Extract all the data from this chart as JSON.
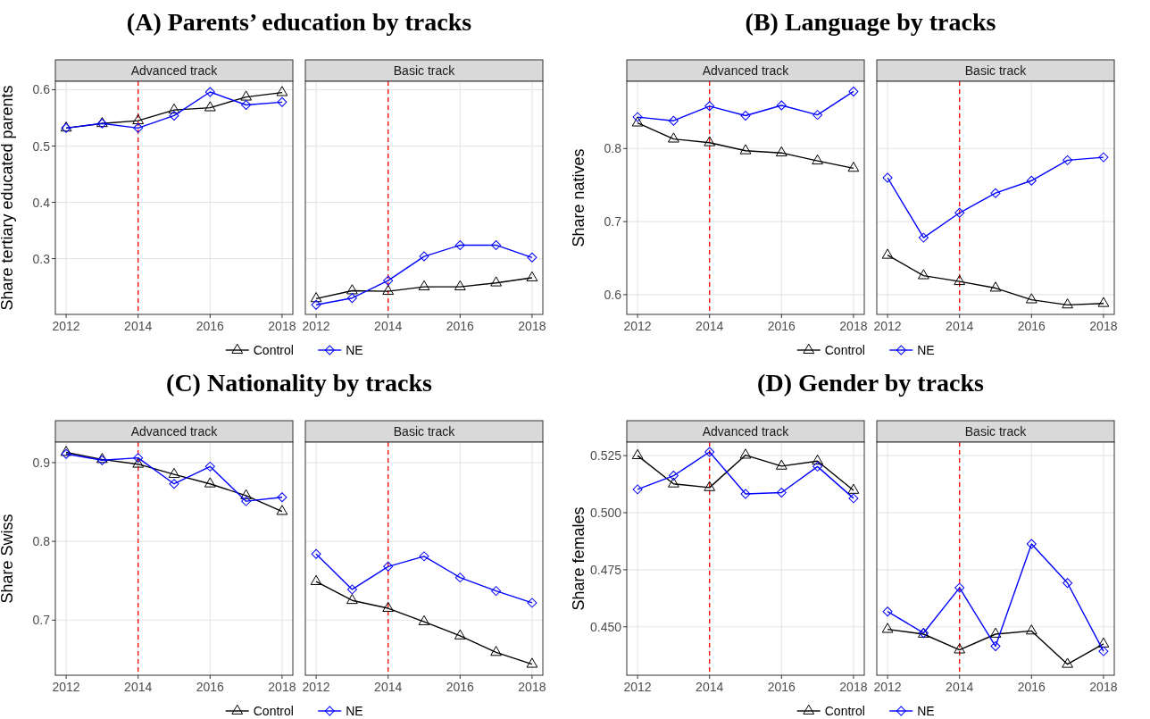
{
  "chart_data": [
    {
      "type": "line",
      "title": "(A) Parents’ education by tracks",
      "subtitle": "Advanced track",
      "ylabel": "Share tertiary educated parents",
      "x": [
        2012,
        2013,
        2014,
        2015,
        2016,
        2017,
        2018
      ],
      "xlim": [
        2011.7,
        2018.3
      ],
      "xticks": [
        2012,
        2014,
        2016,
        2018
      ],
      "ylim": [
        0.201,
        0.615
      ],
      "yticks": [
        0.3,
        0.4,
        0.5,
        0.6
      ],
      "grid": true,
      "legend": "bottom",
      "ref_lines": [
        {
          "axis": "x",
          "value": 2014,
          "color": "#ff0000",
          "line_style": "dashed"
        }
      ],
      "series": [
        {
          "name": "Control",
          "color": "#000000",
          "marker": "triangle",
          "values": [
            0.532,
            0.54,
            0.545,
            0.564,
            0.568,
            0.587,
            0.595
          ]
        },
        {
          "name": "NE",
          "color": "#0000ff",
          "marker": "diamond",
          "values": [
            0.532,
            0.54,
            0.532,
            0.554,
            0.596,
            0.573,
            0.578
          ]
        }
      ]
    },
    {
      "type": "line",
      "subtitle": "Basic track",
      "x": [
        2012,
        2013,
        2014,
        2015,
        2016,
        2017,
        2018
      ],
      "xlim": [
        2011.7,
        2018.3
      ],
      "xticks": [
        2012,
        2014,
        2016,
        2018
      ],
      "ylim": [
        0.201,
        0.615
      ],
      "yticks": [
        0.3,
        0.4,
        0.5,
        0.6
      ],
      "grid": true,
      "tick_labels": "x",
      "ref_lines": [
        {
          "axis": "x",
          "value": 2014,
          "color": "#ff0000",
          "line_style": "dashed"
        }
      ],
      "series": [
        {
          "color": "#000000",
          "marker": "triangle",
          "values": [
            0.229,
            0.243,
            0.242,
            0.25,
            0.25,
            0.257,
            0.266
          ]
        },
        {
          "color": "#0000ff",
          "marker": "diamond",
          "values": [
            0.218,
            0.23,
            0.261,
            0.304,
            0.324,
            0.324,
            0.302
          ]
        }
      ]
    },
    {
      "type": "line",
      "title": "(B) Language by tracks",
      "subtitle": "Advanced track",
      "ylabel": "Share natives",
      "x": [
        2012,
        2013,
        2014,
        2015,
        2016,
        2017,
        2018
      ],
      "xlim": [
        2011.7,
        2018.3
      ],
      "xticks": [
        2012,
        2014,
        2016,
        2018
      ],
      "ylim": [
        0.573,
        0.892
      ],
      "yticks": [
        0.6,
        0.7,
        0.8
      ],
      "grid": true,
      "legend": "bottom",
      "ref_lines": [
        {
          "axis": "x",
          "value": 2014,
          "color": "#ff0000",
          "line_style": "dashed"
        }
      ],
      "series": [
        {
          "name": "Control",
          "color": "#000000",
          "marker": "triangle",
          "values": [
            0.835,
            0.813,
            0.808,
            0.797,
            0.794,
            0.783,
            0.773
          ]
        },
        {
          "name": "NE",
          "color": "#0000ff",
          "marker": "diamond",
          "values": [
            0.843,
            0.838,
            0.858,
            0.845,
            0.859,
            0.846,
            0.878
          ]
        }
      ]
    },
    {
      "type": "line",
      "subtitle": "Basic track",
      "x": [
        2012,
        2013,
        2014,
        2015,
        2016,
        2017,
        2018
      ],
      "xlim": [
        2011.7,
        2018.3
      ],
      "xticks": [
        2012,
        2014,
        2016,
        2018
      ],
      "ylim": [
        0.573,
        0.892
      ],
      "yticks": [
        0.6,
        0.7,
        0.8
      ],
      "grid": true,
      "tick_labels": "x",
      "ref_lines": [
        {
          "axis": "x",
          "value": 2014,
          "color": "#ff0000",
          "line_style": "dashed"
        }
      ],
      "series": [
        {
          "color": "#000000",
          "marker": "triangle",
          "values": [
            0.654,
            0.626,
            0.618,
            0.609,
            0.593,
            0.586,
            0.588
          ]
        },
        {
          "color": "#0000ff",
          "marker": "diamond",
          "values": [
            0.76,
            0.678,
            0.712,
            0.739,
            0.756,
            0.784,
            0.788
          ]
        }
      ]
    },
    {
      "type": "line",
      "title": "(C) Nationality by tracks",
      "subtitle": "Advanced track",
      "ylabel": "Share Swiss",
      "x": [
        2012,
        2013,
        2014,
        2015,
        2016,
        2017,
        2018
      ],
      "xlim": [
        2011.7,
        2018.3
      ],
      "xticks": [
        2012,
        2014,
        2016,
        2018
      ],
      "ylim": [
        0.63,
        0.926
      ],
      "yticks": [
        0.7,
        0.8,
        0.9
      ],
      "grid": true,
      "legend": "bottom",
      "ref_lines": [
        {
          "axis": "x",
          "value": 2014,
          "color": "#ff0000",
          "line_style": "dashed"
        }
      ],
      "series": [
        {
          "name": "Control",
          "color": "#000000",
          "marker": "triangle",
          "values": [
            0.913,
            0.904,
            0.898,
            0.885,
            0.873,
            0.858,
            0.838
          ]
        },
        {
          "name": "NE",
          "color": "#0000ff",
          "marker": "diamond",
          "values": [
            0.911,
            0.903,
            0.906,
            0.873,
            0.895,
            0.851,
            0.856
          ]
        }
      ]
    },
    {
      "type": "line",
      "subtitle": "Basic track",
      "x": [
        2012,
        2013,
        2014,
        2015,
        2016,
        2017,
        2018
      ],
      "xlim": [
        2011.7,
        2018.3
      ],
      "xticks": [
        2012,
        2014,
        2016,
        2018
      ],
      "ylim": [
        0.63,
        0.926
      ],
      "yticks": [
        0.7,
        0.8,
        0.9
      ],
      "grid": true,
      "tick_labels": "x",
      "ref_lines": [
        {
          "axis": "x",
          "value": 2014,
          "color": "#ff0000",
          "line_style": "dashed"
        }
      ],
      "series": [
        {
          "color": "#000000",
          "marker": "triangle",
          "values": [
            0.749,
            0.725,
            0.715,
            0.698,
            0.68,
            0.659,
            0.644
          ]
        },
        {
          "color": "#0000ff",
          "marker": "diamond",
          "values": [
            0.784,
            0.739,
            0.768,
            0.781,
            0.754,
            0.737,
            0.722
          ]
        }
      ]
    },
    {
      "type": "line",
      "title": "(D) Gender by tracks",
      "subtitle": "Advanced track",
      "ylabel": "Share females",
      "x": [
        2012,
        2013,
        2014,
        2015,
        2016,
        2017,
        2018
      ],
      "xlim": [
        2011.7,
        2018.3
      ],
      "xticks": [
        2012,
        2014,
        2016,
        2018
      ],
      "ylim": [
        0.4288,
        0.5309
      ],
      "yticks": [
        {
          "value": 0.45,
          "label": "0.450"
        },
        {
          "value": 0.475,
          "label": "0.475"
        },
        {
          "value": 0.5,
          "label": "0.500"
        },
        {
          "value": 0.525,
          "label": "0.525"
        }
      ],
      "grid": true,
      "legend": "bottom",
      "ref_lines": [
        {
          "axis": "x",
          "value": 2014,
          "color": "#ff0000",
          "line_style": "dashed"
        }
      ],
      "series": [
        {
          "name": "Control",
          "color": "#000000",
          "marker": "triangle",
          "values": [
            0.525,
            0.5126,
            0.511,
            0.5252,
            0.5204,
            0.5226,
            0.5098
          ]
        },
        {
          "name": "NE",
          "color": "#0000ff",
          "marker": "diamond",
          "values": [
            0.5102,
            0.5162,
            0.5266,
            0.5082,
            0.5088,
            0.5202,
            0.5063
          ]
        }
      ]
    },
    {
      "type": "line",
      "subtitle": "Basic track",
      "x": [
        2012,
        2013,
        2014,
        2015,
        2016,
        2017,
        2018
      ],
      "xlim": [
        2011.7,
        2018.3
      ],
      "xticks": [
        2012,
        2014,
        2016,
        2018
      ],
      "ylim": [
        0.4288,
        0.5309
      ],
      "yticks": [
        0.45,
        0.475,
        0.5,
        0.525
      ],
      "grid": true,
      "tick_labels": "x",
      "ref_lines": [
        {
          "axis": "x",
          "value": 2014,
          "color": "#ff0000",
          "line_style": "dashed"
        }
      ],
      "series": [
        {
          "color": "#000000",
          "marker": "triangle",
          "values": [
            0.4489,
            0.4468,
            0.4399,
            0.4468,
            0.4482,
            0.4336,
            0.4425
          ]
        },
        {
          "color": "#0000ff",
          "marker": "diamond",
          "values": [
            0.4567,
            0.4473,
            0.4671,
            0.4415,
            0.4863,
            0.4692,
            0.4393
          ]
        }
      ]
    }
  ]
}
